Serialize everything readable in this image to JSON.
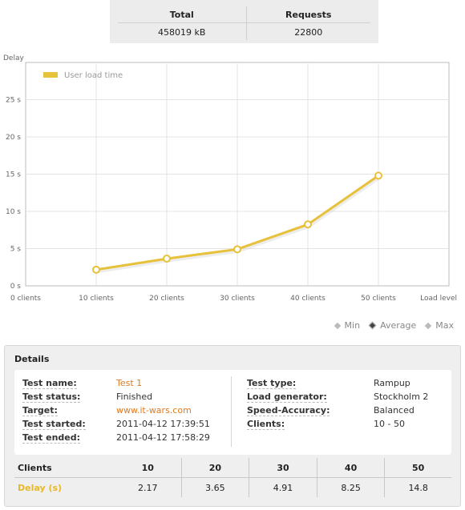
{
  "summary": {
    "headers": [
      "Total",
      "Requests"
    ],
    "values": [
      "458019 kB",
      "22800"
    ]
  },
  "chart_data": {
    "type": "line",
    "ylabel": "Delay",
    "xlabel": "Load level",
    "x_ticks": [
      "0 clients",
      "10 clients",
      "20 clients",
      "30 clients",
      "40 clients",
      "50 clients"
    ],
    "y_ticks": [
      "0 s",
      "5 s",
      "10 s",
      "15 s",
      "20 s",
      "25 s"
    ],
    "ylim": [
      0,
      30
    ],
    "x": [
      10,
      20,
      30,
      40,
      50
    ],
    "series": [
      {
        "name": "User load time",
        "values": [
          2.17,
          3.65,
          4.91,
          8.25,
          14.8
        ],
        "color": "#e8c13a"
      }
    ]
  },
  "legend_controls": [
    "Min",
    "Average",
    "Max"
  ],
  "details": {
    "title": "Details",
    "left": [
      {
        "label": "Test name:",
        "value": "Test 1",
        "link": true
      },
      {
        "label": "Test status:",
        "value": "Finished",
        "link": false
      },
      {
        "label": "Target:",
        "value": "www.it-wars.com",
        "link": true
      },
      {
        "label": "Test started:",
        "value": "2011-04-12 17:39:51",
        "link": false
      },
      {
        "label": "Test ended:",
        "value": "2011-04-12 17:58:29",
        "link": false
      }
    ],
    "right": [
      {
        "label": "Test type:",
        "value": "Rampup"
      },
      {
        "label": "Load generator:",
        "value": "Stockholm 2"
      },
      {
        "label": "Speed-Accuracy:",
        "value": "Balanced"
      },
      {
        "label": "Clients:",
        "value": "10 - 50"
      }
    ],
    "stats": {
      "clients_label": "Clients",
      "delay_label": "Delay (s)",
      "clients": [
        "10",
        "20",
        "30",
        "40",
        "50"
      ],
      "delays": [
        "2.17",
        "3.65",
        "4.91",
        "8.25",
        "14.8"
      ]
    }
  }
}
